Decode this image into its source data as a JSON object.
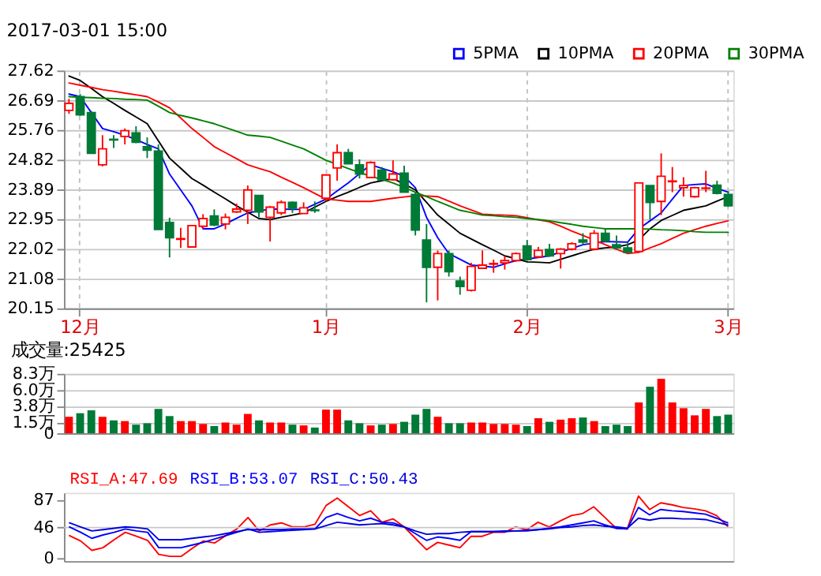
{
  "chart_data": [
    {
      "type": "candlestick",
      "title": "2017-03-01 15:00",
      "categories": [
        null,
        "12月",
        null,
        null,
        null,
        null,
        null,
        null,
        null,
        null,
        null,
        null,
        null,
        null,
        null,
        null,
        null,
        null,
        null,
        null,
        null,
        null,
        null,
        "1月",
        null,
        null,
        null,
        null,
        null,
        null,
        null,
        null,
        null,
        null,
        null,
        null,
        null,
        null,
        null,
        null,
        null,
        "2月",
        null,
        null,
        null,
        null,
        null,
        null,
        null,
        null,
        null,
        null,
        null,
        null,
        null,
        null,
        null,
        null,
        null,
        "3月"
      ],
      "ohlc": [
        [
          26.37,
          26.73,
          26.26,
          26.59
        ],
        [
          26.8,
          26.88,
          26.2,
          26.23
        ],
        [
          26.3,
          26.35,
          25.02,
          25.02
        ],
        [
          24.66,
          25.59,
          24.61,
          25.16
        ],
        [
          25.46,
          25.59,
          25.19,
          25.44
        ],
        [
          25.55,
          25.8,
          25.3,
          25.73
        ],
        [
          25.66,
          25.87,
          25.34,
          25.37
        ],
        [
          25.23,
          25.52,
          24.87,
          25.12
        ],
        [
          25.09,
          25.3,
          22.63,
          22.63
        ],
        [
          22.85,
          23.0,
          21.75,
          22.37
        ],
        [
          22.32,
          22.68,
          22.05,
          22.34
        ],
        [
          22.08,
          22.75,
          22.08,
          22.75
        ],
        [
          22.73,
          23.11,
          22.65,
          22.97
        ],
        [
          23.05,
          23.26,
          22.73,
          22.77
        ],
        [
          22.8,
          23.13,
          22.63,
          23.01
        ],
        [
          23.18,
          23.44,
          23.15,
          23.27
        ],
        [
          23.23,
          24.01,
          22.8,
          23.87
        ],
        [
          23.7,
          23.7,
          23.01,
          23.18
        ],
        [
          23.01,
          23.37,
          22.25,
          23.33
        ],
        [
          23.15,
          23.54,
          23.08,
          23.48
        ],
        [
          23.48,
          23.51,
          23.15,
          23.3
        ],
        [
          23.13,
          23.48,
          23.13,
          23.31
        ],
        [
          23.24,
          23.51,
          23.15,
          23.22
        ],
        [
          23.61,
          24.34,
          23.51,
          24.34
        ],
        [
          24.56,
          25.3,
          24.16,
          25.04
        ],
        [
          25.04,
          25.16,
          24.69,
          24.69
        ],
        [
          24.66,
          24.83,
          24.23,
          24.37
        ],
        [
          24.26,
          24.77,
          24.26,
          24.73
        ],
        [
          24.49,
          24.59,
          24.16,
          24.19
        ],
        [
          24.19,
          24.8,
          24.16,
          24.37
        ],
        [
          24.4,
          24.63,
          23.8,
          23.8
        ],
        [
          23.73,
          23.8,
          22.44,
          22.61
        ],
        [
          22.3,
          22.8,
          20.34,
          21.44
        ],
        [
          21.44,
          21.97,
          20.4,
          21.87
        ],
        [
          21.87,
          21.97,
          21.15,
          21.3
        ],
        [
          21.01,
          21.15,
          20.58,
          20.84
        ],
        [
          20.72,
          21.58,
          20.68,
          21.47
        ],
        [
          21.41,
          21.97,
          21.41,
          21.51
        ],
        [
          21.54,
          21.68,
          21.27,
          21.56
        ],
        [
          21.58,
          21.8,
          21.37,
          21.65
        ],
        [
          21.65,
          21.91,
          21.62,
          21.87
        ],
        [
          22.11,
          22.3,
          21.65,
          21.68
        ],
        [
          21.77,
          22.08,
          21.73,
          21.97
        ],
        [
          22.0,
          22.18,
          21.77,
          21.8
        ],
        [
          21.87,
          22.04,
          21.4,
          22.01
        ],
        [
          22.01,
          22.23,
          21.97,
          22.18
        ],
        [
          22.3,
          22.51,
          22.15,
          22.23
        ],
        [
          22.01,
          22.61,
          21.97,
          22.51
        ],
        [
          22.51,
          22.66,
          22.23,
          22.27
        ],
        [
          22.15,
          22.44,
          22.01,
          22.05
        ],
        [
          22.05,
          22.23,
          21.91,
          21.91
        ],
        [
          21.94,
          24.09,
          21.94,
          24.09
        ],
        [
          24.01,
          24.01,
          22.94,
          23.48
        ],
        [
          23.51,
          25.02,
          23.08,
          24.3
        ],
        [
          24.13,
          24.59,
          23.8,
          24.15
        ],
        [
          23.94,
          24.27,
          23.66,
          24.01
        ],
        [
          23.66,
          23.97,
          23.63,
          23.94
        ],
        [
          23.92,
          24.47,
          23.8,
          23.93
        ],
        [
          24.02,
          24.16,
          23.73,
          23.76
        ],
        [
          23.73,
          23.83,
          23.34,
          23.37
        ]
      ],
      "colors": [
        "#ff0000",
        "#007a37",
        "#007a37",
        "#ff0000",
        "#007a37",
        "#ff0000",
        "#007a37",
        "#007a37",
        "#007a37",
        "#007a37",
        "#ff0000",
        "#ff0000",
        "#ff0000",
        "#007a37",
        "#ff0000",
        "#ff0000",
        "#ff0000",
        "#007a37",
        "#ff0000",
        "#ff0000",
        "#007a37",
        "#ff0000",
        "#007a37",
        "#ff0000",
        "#ff0000",
        "#007a37",
        "#007a37",
        "#ff0000",
        "#007a37",
        "#ff0000",
        "#007a37",
        "#007a37",
        "#007a37",
        "#ff0000",
        "#007a37",
        "#007a37",
        "#ff0000",
        "#ff0000",
        "#ff0000",
        "#ff0000",
        "#ff0000",
        "#007a37",
        "#ff0000",
        "#007a37",
        "#ff0000",
        "#ff0000",
        "#007a37",
        "#ff0000",
        "#007a37",
        "#007a37",
        "#007a37",
        "#ff0000",
        "#007a37",
        "#ff0000",
        "#ff0000",
        "#ff0000",
        "#ff0000",
        "#ff0000",
        "#007a37",
        "#007a37"
      ],
      "series": [
        {
          "name": "5PMA",
          "type": "line",
          "color": "#0000ff",
          "values": [
            26.88,
            26.8,
            26.3,
            25.8,
            25.7,
            25.59,
            25.45,
            25.3,
            25.16,
            24.37,
            23.87,
            23.37,
            22.65,
            22.65,
            22.8,
            22.98,
            23.15,
            23.21,
            23.27,
            23.27,
            23.26,
            23.26,
            23.42,
            23.58,
            23.84,
            24.09,
            24.38,
            24.66,
            24.55,
            24.44,
            24.3,
            23.94,
            23.01,
            22.37,
            21.87,
            21.69,
            21.51,
            21.48,
            21.44,
            21.55,
            21.65,
            21.7,
            21.75,
            21.8,
            21.92,
            22.03,
            22.15,
            22.2,
            22.25,
            22.24,
            22.23,
            22.65,
            22.9,
            23.15,
            23.58,
            24.01,
            24.04,
            24.06,
            23.92,
            23.8
          ]
        },
        {
          "name": "10PMA",
          "type": "line",
          "color": "#000000",
          "values": [
            27.45,
            27.31,
            27.06,
            26.8,
            26.59,
            26.37,
            26.16,
            25.95,
            25.41,
            24.87,
            24.55,
            24.23,
            24.02,
            23.8,
            23.59,
            23.37,
            23.17,
            22.97,
            22.94,
            23.01,
            23.08,
            23.15,
            23.33,
            23.51,
            23.66,
            23.8,
            23.95,
            24.09,
            24.16,
            24.23,
            24.05,
            23.87,
            23.48,
            23.08,
            22.8,
            22.51,
            22.33,
            22.15,
            21.98,
            21.8,
            21.71,
            21.61,
            21.6,
            21.58,
            21.69,
            21.8,
            21.91,
            22.01,
            22.05,
            22.08,
            22.15,
            22.3,
            22.65,
            22.91,
            23.07,
            23.23,
            23.3,
            23.37,
            23.52,
            23.66
          ]
        },
        {
          "name": "20PMA",
          "type": "line",
          "color": "#ff0000",
          "values": [
            27.23,
            27.16,
            27.09,
            27.02,
            26.97,
            26.91,
            26.86,
            26.8,
            26.63,
            26.45,
            26.13,
            25.8,
            25.52,
            25.23,
            25.04,
            24.85,
            24.66,
            24.55,
            24.44,
            24.27,
            24.11,
            23.94,
            23.76,
            23.58,
            23.55,
            23.51,
            23.51,
            23.51,
            23.56,
            23.61,
            23.65,
            23.69,
            23.68,
            23.66,
            23.52,
            23.37,
            23.24,
            23.11,
            23.09,
            23.08,
            23.06,
            23.0,
            22.93,
            22.87,
            22.73,
            22.58,
            22.44,
            22.3,
            22.15,
            22.01,
            21.87,
            21.91,
            22.05,
            22.18,
            22.35,
            22.51,
            22.62,
            22.73,
            22.82,
            22.9
          ]
        },
        {
          "name": "30PMA",
          "type": "line",
          "color": "#008000",
          "values": [
            26.8,
            26.78,
            26.77,
            26.75,
            26.74,
            26.72,
            26.71,
            26.69,
            26.5,
            26.3,
            26.21,
            26.13,
            26.04,
            25.95,
            25.83,
            25.71,
            25.59,
            25.56,
            25.52,
            25.4,
            25.28,
            25.16,
            24.98,
            24.8,
            24.67,
            24.54,
            24.42,
            24.3,
            24.2,
            24.09,
            23.95,
            23.8,
            23.66,
            23.51,
            23.37,
            23.23,
            23.16,
            23.08,
            23.06,
            23.03,
            23.01,
            22.97,
            22.94,
            22.9,
            22.84,
            22.79,
            22.73,
            22.69,
            22.65,
            22.65,
            22.65,
            22.65,
            22.64,
            22.62,
            22.61,
            22.59,
            22.56,
            22.54,
            22.54,
            22.54
          ]
        }
      ],
      "legend": "top right",
      "ylim": [
        20.15,
        27.62
      ],
      "yticks": [
        20.15,
        21.08,
        22.02,
        22.95,
        23.89,
        24.82,
        25.76,
        26.69,
        27.62
      ],
      "grid": true
    },
    {
      "type": "bar",
      "title": "成交量:25425",
      "categories": [
        null,
        null,
        null,
        null,
        null,
        null,
        null,
        null,
        null,
        null,
        null,
        null,
        null,
        null,
        null,
        null,
        null,
        null,
        null,
        null,
        null,
        null,
        null,
        null,
        null,
        null,
        null,
        null,
        null,
        null,
        null,
        null,
        null,
        null,
        null,
        null,
        null,
        null,
        null,
        null,
        null,
        null,
        null,
        null,
        null,
        null,
        null,
        null,
        null,
        null,
        null,
        null,
        null,
        null,
        null,
        null,
        null,
        null,
        null,
        null
      ],
      "values": [
        2.3,
        2.8,
        3.2,
        2.3,
        1.8,
        1.7,
        1.2,
        1.4,
        3.4,
        2.4,
        1.7,
        1.7,
        1.3,
        1.0,
        1.5,
        1.2,
        2.7,
        1.8,
        1.5,
        1.5,
        1.2,
        1.1,
        0.8,
        3.3,
        3.3,
        1.8,
        1.4,
        1.1,
        1.2,
        1.3,
        1.6,
        2.6,
        3.4,
        2.3,
        1.4,
        1.4,
        1.5,
        1.5,
        1.3,
        1.3,
        1.2,
        1.0,
        2.1,
        1.6,
        1.9,
        2.1,
        2.2,
        1.7,
        1.0,
        1.2,
        1.0,
        4.3,
        6.5,
        7.6,
        4.3,
        3.5,
        2.5,
        3.4,
        2.4,
        2.6
      ],
      "colors": [
        "#ff0000",
        "#007a37",
        "#007a37",
        "#ff0000",
        "#007a37",
        "#ff0000",
        "#007a37",
        "#007a37",
        "#007a37",
        "#007a37",
        "#ff0000",
        "#ff0000",
        "#ff0000",
        "#007a37",
        "#ff0000",
        "#ff0000",
        "#ff0000",
        "#007a37",
        "#ff0000",
        "#ff0000",
        "#007a37",
        "#ff0000",
        "#007a37",
        "#ff0000",
        "#ff0000",
        "#007a37",
        "#007a37",
        "#ff0000",
        "#007a37",
        "#ff0000",
        "#007a37",
        "#007a37",
        "#007a37",
        "#ff0000",
        "#007a37",
        "#007a37",
        "#ff0000",
        "#ff0000",
        "#ff0000",
        "#ff0000",
        "#ff0000",
        "#007a37",
        "#ff0000",
        "#007a37",
        "#ff0000",
        "#ff0000",
        "#007a37",
        "#ff0000",
        "#007a37",
        "#007a37",
        "#007a37",
        "#ff0000",
        "#007a37",
        "#ff0000",
        "#ff0000",
        "#ff0000",
        "#ff0000",
        "#ff0000",
        "#007a37",
        "#007a37"
      ],
      "ylim": [
        0,
        8.3
      ],
      "yticks": [
        {
          "value": 0,
          "label": "0"
        },
        {
          "value": 1.5,
          "label": "1.5万"
        },
        {
          "value": 3.8,
          "label": "3.8万"
        },
        {
          "value": 6.0,
          "label": "6.0万"
        },
        {
          "value": 8.3,
          "label": "8.3万"
        }
      ],
      "grid": "y",
      "tick_labels": "y"
    },
    {
      "type": "line",
      "categories": [
        null,
        null,
        null,
        null,
        null,
        null,
        null,
        null,
        null,
        null,
        null,
        null,
        null,
        null,
        null,
        null,
        null,
        null,
        null,
        null,
        null,
        null,
        null,
        null,
        null,
        null,
        null,
        null,
        null,
        null,
        null,
        null,
        null,
        null,
        null,
        null,
        null,
        null,
        null,
        null,
        null,
        null,
        null,
        null,
        null,
        null,
        null,
        null,
        null,
        null,
        null,
        null,
        null,
        null,
        null,
        null,
        null,
        null,
        null,
        null
      ],
      "series": [
        {
          "name": "RSI_A:47.69",
          "color": "#ff0000",
          "values": [
            34,
            26,
            12,
            16,
            28,
            39,
            33,
            27,
            6,
            3,
            3,
            15,
            26,
            23,
            34,
            44,
            61,
            41,
            50,
            53,
            47,
            47,
            51,
            79,
            90,
            77,
            64,
            71,
            54,
            59,
            47,
            30,
            13,
            24,
            20,
            16,
            33,
            33,
            39,
            39,
            47,
            43,
            54,
            47,
            56,
            64,
            67,
            77,
            61,
            45,
            44,
            93,
            73,
            83,
            80,
            76,
            74,
            71,
            64,
            48
          ]
        },
        {
          "name": "RSI_B:53.07",
          "color": "#0000ff",
          "values": [
            47,
            39,
            30,
            35,
            39,
            44,
            41,
            39,
            16,
            16,
            16,
            20,
            24,
            29,
            34,
            39,
            44,
            39,
            40,
            41,
            42,
            43,
            44,
            61,
            67,
            61,
            56,
            60,
            54,
            53,
            47,
            37,
            27,
            32,
            30,
            27,
            40,
            40,
            40,
            40,
            41,
            42,
            43,
            45,
            47,
            50,
            53,
            56,
            50,
            45,
            44,
            76,
            65,
            73,
            71,
            70,
            68,
            66,
            60,
            53
          ]
        },
        {
          "name": "RSI_C:50.43",
          "color": "#0000dd",
          "values": [
            53,
            47,
            41,
            43,
            45,
            47,
            46,
            44,
            28,
            28,
            28,
            30,
            32,
            34,
            37,
            40,
            43,
            43,
            43,
            43,
            44,
            44,
            44,
            49,
            54,
            52,
            50,
            51,
            52,
            50,
            47,
            41,
            36,
            37,
            37,
            39,
            40,
            40,
            40,
            41,
            41,
            41,
            43,
            44,
            46,
            47,
            49,
            50,
            48,
            47,
            45,
            60,
            57,
            60,
            60,
            59,
            59,
            58,
            54,
            50
          ]
        }
      ],
      "ylim": [
        -4,
        98
      ],
      "yticks": [
        0,
        46,
        87
      ],
      "tick_labels": "y",
      "ref_lines": [
        {
          "axis": "y",
          "value": 46,
          "color": "#c8c8c8"
        }
      ]
    }
  ]
}
